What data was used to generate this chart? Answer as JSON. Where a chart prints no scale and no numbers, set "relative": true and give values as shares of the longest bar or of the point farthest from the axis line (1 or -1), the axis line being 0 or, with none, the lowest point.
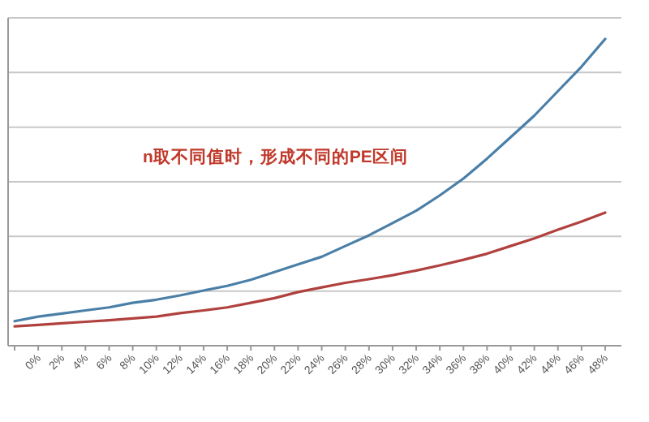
{
  "chart_data": {
    "type": "line",
    "relative": true,
    "grid": "y",
    "categories": [
      null,
      "0%",
      "2%",
      "4%",
      "6%",
      "8%",
      "10%",
      "12%",
      "14%",
      "16%",
      "18%",
      "20%",
      "22%",
      "24%",
      "26%",
      "28%",
      "30%",
      "32%",
      "34%",
      "36%",
      "38%",
      "40%",
      "42%",
      "44%",
      "46%",
      "48%"
    ],
    "series": [
      {
        "color": "#4a7fa8",
        "values": [
          0.08,
          0.095,
          0.105,
          0.115,
          0.125,
          0.14,
          0.15,
          0.164,
          0.18,
          0.195,
          0.215,
          0.24,
          0.265,
          0.29,
          0.325,
          0.36,
          0.4,
          0.44,
          0.49,
          0.545,
          0.61,
          0.68,
          0.75,
          0.83,
          0.91,
          1.0
        ]
      },
      {
        "color": "#b0413e",
        "values": [
          0.063,
          0.068,
          0.073,
          0.078,
          0.083,
          0.089,
          0.095,
          0.106,
          0.115,
          0.125,
          0.14,
          0.155,
          0.175,
          0.19,
          0.205,
          0.217,
          0.23,
          0.245,
          0.262,
          0.28,
          0.3,
          0.325,
          0.35,
          0.378,
          0.405,
          0.434
        ]
      }
    ],
    "annotations": [
      "n取不同值时，形成不同的PE区间"
    ],
    "marker": "none",
    "line_style": "solid"
  }
}
